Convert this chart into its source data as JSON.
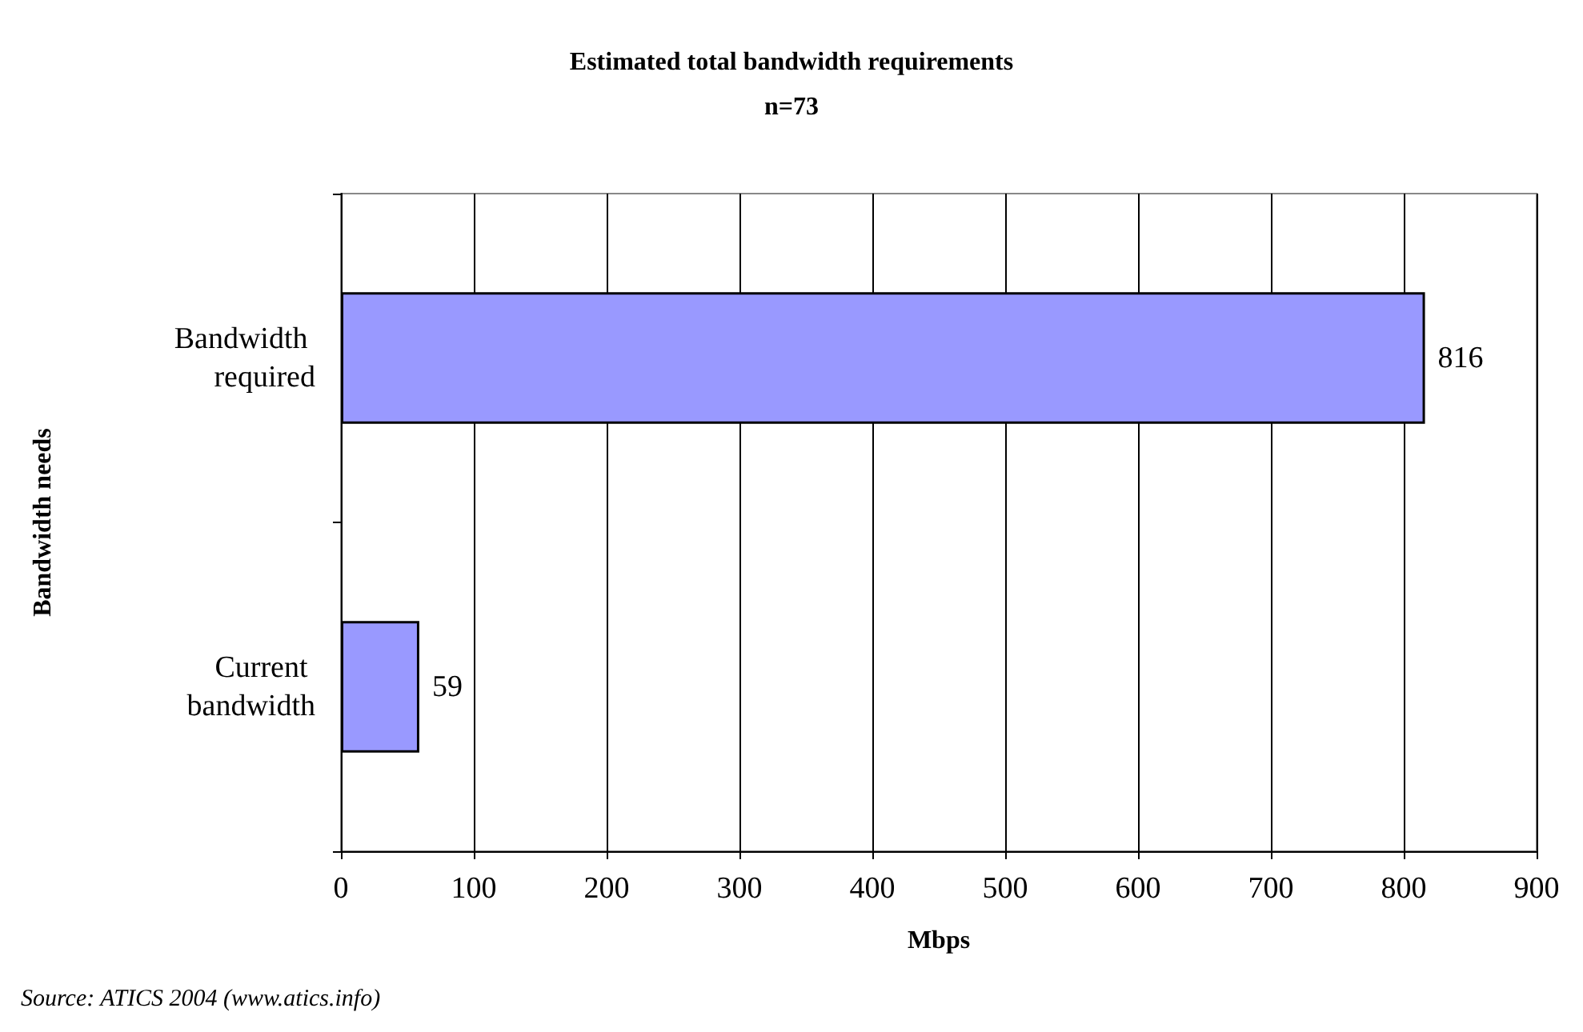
{
  "chart_data": {
    "type": "bar",
    "orientation": "horizontal",
    "title": "Estimated total bandwidth requirements",
    "subtitle": "n=73",
    "xlabel": "Mbps",
    "ylabel": "Bandwidth needs",
    "categories": [
      "Bandwidth required",
      "Current bandwidth"
    ],
    "values": [
      816,
      59
    ],
    "color": "#9999ff",
    "data_labels": true,
    "xlim": [
      0,
      900
    ],
    "xticks": [
      0,
      100,
      200,
      300,
      400,
      500,
      600,
      700,
      800,
      900
    ],
    "grid": "x",
    "annotations": [
      "Source: ATICS 2004 (www.atics.info)"
    ]
  }
}
